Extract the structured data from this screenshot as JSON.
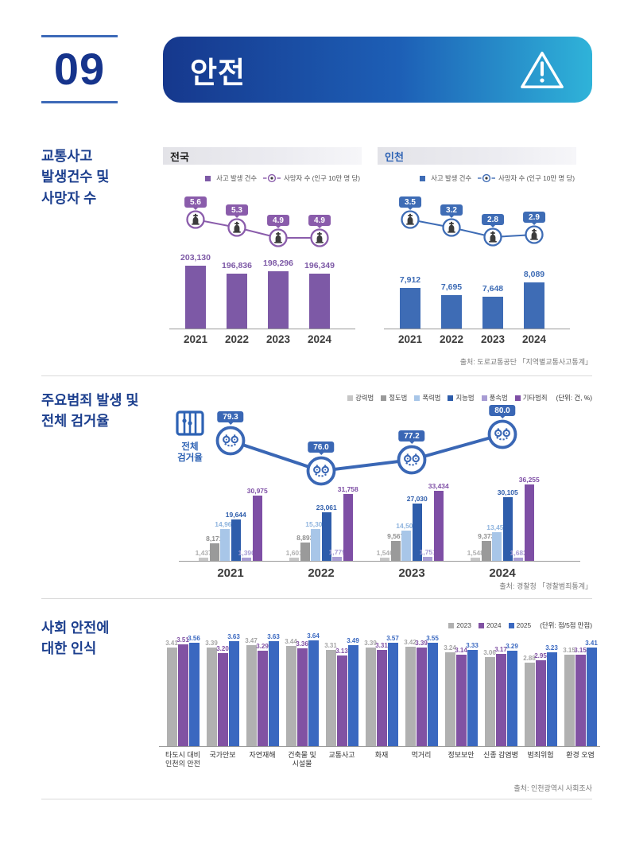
{
  "header": {
    "section_number": "09",
    "title": "안전"
  },
  "colors": {
    "accent_blue": "#1c3f8e",
    "banner_gradient_start": "#16388d",
    "banner_gradient_end": "#2fb3d9",
    "number_line": "#3d6ab8"
  },
  "section_traffic": {
    "title_lines": [
      "교통사고",
      "발생건수 및",
      "사망자 수"
    ],
    "legend_bar": "사고 발생 건수",
    "legend_line": "사망자 수 (인구 10만 명 당)",
    "source": "출처: 도로교통공단 「지역별교통사고통계」"
  },
  "section_crime": {
    "title_lines": [
      "주요범죄 발생 및",
      "전체 검거율"
    ],
    "rate_label_lines": [
      "전체",
      "검거율"
    ],
    "source": "출처: 경찰청 「경찰범죄통계」"
  },
  "section_perception": {
    "title_lines": [
      "사회 안전에",
      "대한 인식"
    ],
    "source": "출처: 인천광역시 사회조사"
  },
  "chart_data": [
    {
      "id": "traffic_national",
      "type": "bar+line",
      "title": "전국",
      "categories": [
        "2021",
        "2022",
        "2023",
        "2024"
      ],
      "bar_series": {
        "name": "사고 발생 건수",
        "values": [
          203130,
          196836,
          198296,
          196349
        ]
      },
      "line_series": {
        "name": "사망자 수 (인구 10만 명 당)",
        "values": [
          5.6,
          5.3,
          4.9,
          4.9
        ]
      },
      "bar_color": "#7d59a6",
      "line_color": "#8a5cab",
      "bar_axis": {
        "min": 150000,
        "max": 212000
      }
    },
    {
      "id": "traffic_incheon",
      "type": "bar+line",
      "title": "인천",
      "categories": [
        "2021",
        "2022",
        "2023",
        "2024"
      ],
      "bar_series": {
        "name": "사고 발생 건수",
        "values": [
          7912,
          7695,
          7648,
          8089
        ]
      },
      "line_series": {
        "name": "사망자 수 (인구 10만 명 당)",
        "values": [
          3.5,
          3.2,
          2.8,
          2.9
        ]
      },
      "bar_color": "#3e6cb5",
      "line_color": "#3e6cb5",
      "bar_axis": {
        "min": 6700,
        "max": 8600
      }
    },
    {
      "id": "crime",
      "type": "grouped-bar+line",
      "unit": "(단위: 건, %)",
      "categories": [
        "2021",
        "2022",
        "2023",
        "2024"
      ],
      "series": [
        {
          "name": "강력범",
          "color": "#c6c6c6",
          "label_color": "#b0b0b0",
          "values": [
            1437,
            1601,
            1546,
            1548
          ]
        },
        {
          "name": "절도범",
          "color": "#9a9a9a",
          "label_color": "#8f8f8f",
          "values": [
            8171,
            8893,
            9567,
            9373
          ]
        },
        {
          "name": "폭력범",
          "color": "#a8c6e8",
          "label_color": "#8fb4de",
          "values": [
            14967,
            15305,
            14503,
            13456
          ]
        },
        {
          "name": "지능범",
          "color": "#2e5dab",
          "values": [
            19644,
            23061,
            27030,
            30105
          ]
        },
        {
          "name": "풍속범",
          "color": "#a89cd4",
          "values": [
            1390,
            1779,
            1751,
            1683
          ]
        },
        {
          "name": "기타범죄",
          "color": "#7e4fa5",
          "values": [
            30975,
            31758,
            33434,
            36255
          ]
        }
      ],
      "line": {
        "name": "전체 검거율",
        "color": "#3a67b5",
        "values": [
          79.3,
          76.0,
          77.2,
          80.0
        ]
      }
    },
    {
      "id": "perception",
      "type": "grouped-bar",
      "unit": "(단위: 점/5점 만점)",
      "categories": [
        [
          "타도시 대비",
          "인천의 안전"
        ],
        [
          "국가안보"
        ],
        [
          "자연재해"
        ],
        [
          "건축물 및",
          "시설물"
        ],
        [
          "교통사고"
        ],
        [
          "화재"
        ],
        [
          "먹거리"
        ],
        [
          "정보보안"
        ],
        [
          "신종 감염병"
        ],
        [
          "범죄위험"
        ],
        [
          "환경 오염"
        ]
      ],
      "series": [
        {
          "name": "2023",
          "color": "#b1b1b1",
          "label_color": "#a5a5a5",
          "values": [
            3.41,
            3.39,
            3.47,
            3.44,
            3.31,
            3.39,
            3.42,
            3.24,
            3.06,
            2.88,
            3.15
          ]
        },
        {
          "name": "2024",
          "color": "#8152a3",
          "values": [
            3.51,
            3.2,
            3.29,
            3.36,
            3.13,
            3.31,
            3.39,
            3.14,
            3.17,
            2.95,
            3.15
          ]
        },
        {
          "name": "2025",
          "color": "#3a68c0",
          "values": [
            3.56,
            3.63,
            3.63,
            3.64,
            3.49,
            3.57,
            3.55,
            3.33,
            3.29,
            3.23,
            3.41
          ]
        }
      ],
      "ylim": [
        0,
        4.1
      ]
    }
  ]
}
